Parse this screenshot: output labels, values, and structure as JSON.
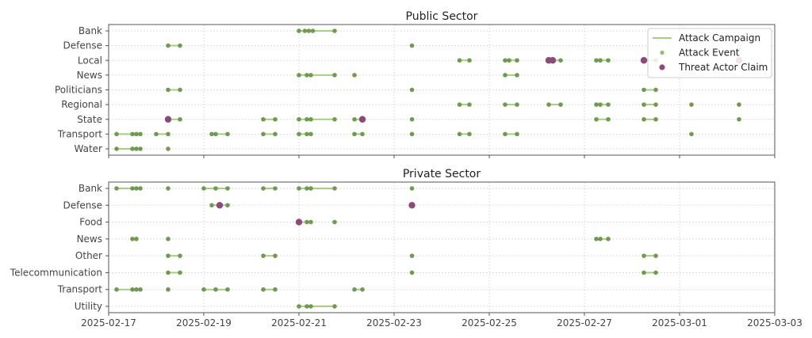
{
  "chart_data": [
    {
      "type": "scatter",
      "title": "Public Sector",
      "xlabel": "",
      "ylabel": "",
      "x_range": [
        "2025-02-17",
        "2025-03-03"
      ],
      "x_ticks": [
        "2025-02-17",
        "2025-02-19",
        "2025-02-21",
        "2025-02-23",
        "2025-02-25",
        "2025-02-27",
        "2025-03-01",
        "2025-03-03"
      ],
      "grid": true,
      "legend": {
        "position": "top-right",
        "entries": [
          {
            "label": "Attack Campaign",
            "marker": "line",
            "color": "#a6cf85"
          },
          {
            "label": "Attack Event",
            "marker": "dot",
            "color": "#8fbf6a"
          },
          {
            "label": "Threat Actor Claim",
            "marker": "dot",
            "color": "#8b4a7a"
          }
        ]
      },
      "categories": [
        "Bank",
        "Defense",
        "Local",
        "News",
        "Politicians",
        "Regional",
        "State",
        "Transport",
        "Water"
      ],
      "series": [
        {
          "category": "Bank",
          "campaigns": [
            [
              "2025-02-21 00:00",
              "2025-02-21 18:00"
            ]
          ],
          "events": [
            "2025-02-21 00:00",
            "2025-02-21 03:00",
            "2025-02-21 05:00",
            "2025-02-21 07:00",
            "2025-02-21 18:00"
          ],
          "claims": []
        },
        {
          "category": "Defense",
          "campaigns": [
            [
              "2025-02-18 06:00",
              "2025-02-18 12:00"
            ]
          ],
          "events": [
            "2025-02-18 06:00",
            "2025-02-18 12:00",
            "2025-02-23 09:00"
          ],
          "claims": []
        },
        {
          "category": "Local",
          "campaigns": [
            [
              "2025-02-24 09:00",
              "2025-02-24 14:00"
            ],
            [
              "2025-02-25 08:00",
              "2025-02-25 14:00"
            ],
            [
              "2025-02-26 06:00",
              "2025-02-26 12:00"
            ],
            [
              "2025-02-27 06:00",
              "2025-02-27 12:00"
            ],
            [
              "2025-02-28 06:00",
              "2025-02-28 12:00"
            ]
          ],
          "events": [
            "2025-02-24 09:00",
            "2025-02-24 14:00",
            "2025-02-25 08:00",
            "2025-02-25 10:00",
            "2025-02-25 14:00",
            "2025-02-26 06:00",
            "2025-02-26 12:00",
            "2025-02-27 06:00",
            "2025-02-27 08:00",
            "2025-02-27 12:00",
            "2025-02-28 06:00",
            "2025-02-28 12:00"
          ],
          "claims": [
            "2025-02-26 06:00",
            "2025-02-26 08:00",
            "2025-02-28 06:00",
            "2025-03-02 06:00"
          ]
        },
        {
          "category": "News",
          "campaigns": [
            [
              "2025-02-21 00:00",
              "2025-02-21 18:00"
            ],
            [
              "2025-02-25 08:00",
              "2025-02-25 14:00"
            ]
          ],
          "events": [
            "2025-02-21 00:00",
            "2025-02-21 04:00",
            "2025-02-21 06:00",
            "2025-02-21 18:00",
            "2025-02-22 04:00",
            "2025-02-25 08:00",
            "2025-02-25 14:00"
          ],
          "claims": []
        },
        {
          "category": "Politicians",
          "campaigns": [
            [
              "2025-02-18 06:00",
              "2025-02-18 12:00"
            ],
            [
              "2025-02-28 06:00",
              "2025-02-28 12:00"
            ]
          ],
          "events": [
            "2025-02-18 06:00",
            "2025-02-18 12:00",
            "2025-02-23 09:00",
            "2025-02-28 06:00",
            "2025-02-28 12:00"
          ],
          "claims": []
        },
        {
          "category": "Regional",
          "campaigns": [
            [
              "2025-02-24 09:00",
              "2025-02-24 14:00"
            ],
            [
              "2025-02-25 08:00",
              "2025-02-25 14:00"
            ],
            [
              "2025-02-26 06:00",
              "2025-02-26 12:00"
            ],
            [
              "2025-02-27 06:00",
              "2025-02-27 12:00"
            ],
            [
              "2025-02-28 06:00",
              "2025-02-28 12:00"
            ]
          ],
          "events": [
            "2025-02-24 09:00",
            "2025-02-24 14:00",
            "2025-02-25 08:00",
            "2025-02-25 14:00",
            "2025-02-26 06:00",
            "2025-02-26 12:00",
            "2025-02-27 06:00",
            "2025-02-27 08:00",
            "2025-02-27 12:00",
            "2025-02-28 06:00",
            "2025-02-28 12:00",
            "2025-03-01 06:00",
            "2025-03-02 06:00"
          ],
          "claims": []
        },
        {
          "category": "State",
          "campaigns": [
            [
              "2025-02-18 06:00",
              "2025-02-18 12:00"
            ],
            [
              "2025-02-20 06:00",
              "2025-02-20 12:00"
            ],
            [
              "2025-02-21 00:00",
              "2025-02-21 18:00"
            ],
            [
              "2025-02-22 04:00",
              "2025-02-22 08:00"
            ],
            [
              "2025-02-27 06:00",
              "2025-02-27 12:00"
            ],
            [
              "2025-02-28 06:00",
              "2025-02-28 12:00"
            ]
          ],
          "events": [
            "2025-02-18 12:00",
            "2025-02-20 06:00",
            "2025-02-20 12:00",
            "2025-02-21 00:00",
            "2025-02-21 04:00",
            "2025-02-21 06:00",
            "2025-02-21 18:00",
            "2025-02-22 04:00",
            "2025-02-23 09:00",
            "2025-02-27 06:00",
            "2025-02-27 12:00",
            "2025-02-28 06:00",
            "2025-02-28 12:00",
            "2025-03-02 06:00"
          ],
          "claims": [
            "2025-02-18 06:00",
            "2025-02-22 08:00"
          ]
        },
        {
          "category": "Transport",
          "campaigns": [
            [
              "2025-02-17 04:00",
              "2025-02-17 16:00"
            ],
            [
              "2025-02-18 00:00",
              "2025-02-18 06:00"
            ],
            [
              "2025-02-19 04:00",
              "2025-02-19 12:00"
            ],
            [
              "2025-02-20 06:00",
              "2025-02-20 12:00"
            ],
            [
              "2025-02-21 00:00",
              "2025-02-21 06:00"
            ],
            [
              "2025-02-22 04:00",
              "2025-02-22 08:00"
            ],
            [
              "2025-02-24 09:00",
              "2025-02-24 14:00"
            ],
            [
              "2025-02-25 08:00",
              "2025-02-25 14:00"
            ]
          ],
          "events": [
            "2025-02-17 04:00",
            "2025-02-17 12:00",
            "2025-02-17 14:00",
            "2025-02-17 16:00",
            "2025-02-18 00:00",
            "2025-02-18 06:00",
            "2025-02-19 04:00",
            "2025-02-19 06:00",
            "2025-02-19 12:00",
            "2025-02-20 06:00",
            "2025-02-20 12:00",
            "2025-02-21 00:00",
            "2025-02-21 04:00",
            "2025-02-21 06:00",
            "2025-02-22 04:00",
            "2025-02-22 08:00",
            "2025-02-23 09:00",
            "2025-02-24 09:00",
            "2025-02-24 14:00",
            "2025-02-25 08:00",
            "2025-02-25 14:00",
            "2025-03-01 06:00"
          ],
          "claims": []
        },
        {
          "category": "Water",
          "campaigns": [
            [
              "2025-02-17 04:00",
              "2025-02-17 16:00"
            ]
          ],
          "events": [
            "2025-02-17 04:00",
            "2025-02-17 12:00",
            "2025-02-17 14:00",
            "2025-02-17 16:00",
            "2025-02-18 06:00"
          ],
          "claims": []
        }
      ]
    },
    {
      "type": "scatter",
      "title": "Private Sector",
      "xlabel": "",
      "ylabel": "",
      "x_range": [
        "2025-02-17",
        "2025-03-03"
      ],
      "x_ticks": [
        "2025-02-17",
        "2025-02-19",
        "2025-02-21",
        "2025-02-23",
        "2025-02-25",
        "2025-02-27",
        "2025-03-01",
        "2025-03-03"
      ],
      "grid": true,
      "categories": [
        "Bank",
        "Defense",
        "Food",
        "News",
        "Other",
        "Telecommunication",
        "Transport",
        "Utility"
      ],
      "series": [
        {
          "category": "Bank",
          "campaigns": [
            [
              "2025-02-17 04:00",
              "2025-02-17 16:00"
            ],
            [
              "2025-02-19 00:00",
              "2025-02-19 12:00"
            ],
            [
              "2025-02-20 06:00",
              "2025-02-20 12:00"
            ],
            [
              "2025-02-21 00:00",
              "2025-02-21 18:00"
            ]
          ],
          "events": [
            "2025-02-17 04:00",
            "2025-02-17 12:00",
            "2025-02-17 14:00",
            "2025-02-17 16:00",
            "2025-02-18 06:00",
            "2025-02-19 00:00",
            "2025-02-19 06:00",
            "2025-02-19 12:00",
            "2025-02-20 06:00",
            "2025-02-20 12:00",
            "2025-02-21 00:00",
            "2025-02-21 04:00",
            "2025-02-21 06:00",
            "2025-02-21 18:00",
            "2025-02-23 09:00"
          ],
          "claims": []
        },
        {
          "category": "Defense",
          "campaigns": [
            [
              "2025-02-19 04:00",
              "2025-02-19 12:00"
            ]
          ],
          "events": [
            "2025-02-19 04:00",
            "2025-02-19 12:00"
          ],
          "claims": [
            "2025-02-19 08:00",
            "2025-02-23 09:00"
          ]
        },
        {
          "category": "Food",
          "campaigns": [
            [
              "2025-02-21 00:00",
              "2025-02-21 06:00"
            ]
          ],
          "events": [
            "2025-02-21 04:00",
            "2025-02-21 06:00",
            "2025-02-21 18:00"
          ],
          "claims": [
            "2025-02-21 00:00"
          ]
        },
        {
          "category": "News",
          "campaigns": [
            [
              "2025-02-17 12:00",
              "2025-02-17 14:00"
            ],
            [
              "2025-02-27 06:00",
              "2025-02-27 12:00"
            ]
          ],
          "events": [
            "2025-02-17 12:00",
            "2025-02-17 14:00",
            "2025-02-18 06:00",
            "2025-02-27 06:00",
            "2025-02-27 08:00",
            "2025-02-27 12:00"
          ],
          "claims": []
        },
        {
          "category": "Other",
          "campaigns": [
            [
              "2025-02-18 06:00",
              "2025-02-18 12:00"
            ],
            [
              "2025-02-20 06:00",
              "2025-02-20 12:00"
            ],
            [
              "2025-02-28 06:00",
              "2025-02-28 12:00"
            ]
          ],
          "events": [
            "2025-02-18 06:00",
            "2025-02-18 12:00",
            "2025-02-20 06:00",
            "2025-02-20 12:00",
            "2025-02-23 09:00",
            "2025-02-28 06:00",
            "2025-02-28 12:00"
          ],
          "claims": []
        },
        {
          "category": "Telecommunication",
          "campaigns": [
            [
              "2025-02-18 06:00",
              "2025-02-18 12:00"
            ],
            [
              "2025-02-28 06:00",
              "2025-02-28 12:00"
            ]
          ],
          "events": [
            "2025-02-18 06:00",
            "2025-02-18 12:00",
            "2025-02-23 09:00",
            "2025-02-28 06:00",
            "2025-02-28 12:00"
          ],
          "claims": []
        },
        {
          "category": "Transport",
          "campaigns": [
            [
              "2025-02-17 04:00",
              "2025-02-17 16:00"
            ],
            [
              "2025-02-19 00:00",
              "2025-02-19 12:00"
            ],
            [
              "2025-02-20 06:00",
              "2025-02-20 12:00"
            ],
            [
              "2025-02-22 04:00",
              "2025-02-22 08:00"
            ]
          ],
          "events": [
            "2025-02-17 04:00",
            "2025-02-17 12:00",
            "2025-02-17 14:00",
            "2025-02-17 16:00",
            "2025-02-18 06:00",
            "2025-02-19 00:00",
            "2025-02-19 06:00",
            "2025-02-19 12:00",
            "2025-02-20 06:00",
            "2025-02-20 12:00",
            "2025-02-22 04:00",
            "2025-02-22 08:00"
          ],
          "claims": []
        },
        {
          "category": "Utility",
          "campaigns": [
            [
              "2025-02-21 00:00",
              "2025-02-21 18:00"
            ]
          ],
          "events": [
            "2025-02-21 00:00",
            "2025-02-21 04:00",
            "2025-02-21 06:00",
            "2025-02-21 18:00"
          ],
          "claims": []
        }
      ]
    }
  ]
}
